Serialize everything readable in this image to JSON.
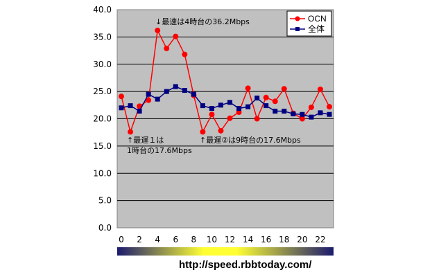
{
  "chart_data": {
    "type": "line",
    "title": "",
    "xlabel": "",
    "ylabel": "",
    "x": [
      0,
      1,
      2,
      3,
      4,
      5,
      6,
      7,
      8,
      9,
      10,
      11,
      12,
      13,
      14,
      15,
      16,
      17,
      18,
      19,
      20,
      21,
      22,
      23
    ],
    "xticks": [
      "0",
      "2",
      "4",
      "6",
      "8",
      "10",
      "12",
      "14",
      "16",
      "18",
      "20",
      "22"
    ],
    "yticks": [
      "0.0",
      "5.0",
      "10.0",
      "15.0",
      "20.0",
      "25.0",
      "30.0",
      "35.0",
      "40.0"
    ],
    "ylim": [
      0,
      40
    ],
    "grid": true,
    "legend": "top-right",
    "series": [
      {
        "name": "OCN",
        "color": "#ff0000",
        "marker": "circle",
        "values": [
          24.1,
          17.6,
          22.3,
          23.4,
          36.2,
          32.9,
          35.1,
          31.8,
          24.3,
          17.6,
          20.8,
          17.8,
          20.1,
          21.2,
          25.6,
          20.0,
          23.9,
          23.2,
          25.5,
          21.0,
          20.0,
          22.1,
          25.4,
          22.2
        ]
      },
      {
        "name": "全体",
        "color": "#000080",
        "marker": "square",
        "values": [
          22.0,
          22.4,
          21.4,
          24.5,
          23.6,
          25.0,
          25.9,
          25.2,
          24.5,
          22.4,
          21.9,
          22.5,
          23.0,
          21.9,
          22.2,
          23.8,
          22.4,
          21.4,
          21.4,
          20.9,
          20.8,
          20.3,
          21.1,
          20.8
        ]
      }
    ],
    "annotations": [
      {
        "text": "↓最速は4時台の36.2Mbps",
        "x": 4,
        "y": 36.2
      },
      {
        "text": "↑最遅１は",
        "x": 1,
        "y": 17.6
      },
      {
        "text": "1時台の17.6Mbps",
        "x": 1,
        "y": 17.6
      },
      {
        "text": "↑最遅②は9時台の17.6Mbps",
        "x": 9,
        "y": 17.6
      }
    ]
  },
  "footer": {
    "url": "http://speed.rbbtoday.com/"
  }
}
